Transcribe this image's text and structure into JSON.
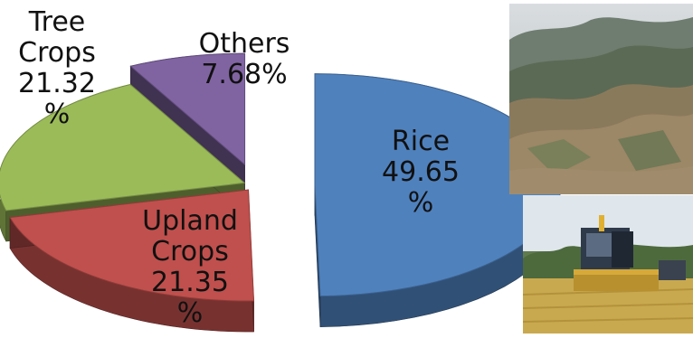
{
  "chart_data": {
    "type": "pie",
    "title": "",
    "style": "3d-exploded",
    "slices": [
      {
        "label": "Rice",
        "value": 49.65,
        "text": "Rice\n49.65\n%",
        "color": "#4f81bd"
      },
      {
        "label": "Upland Crops",
        "value": 21.35,
        "text": "Upland\nCrops\n21.35\n%",
        "color": "#c0504d"
      },
      {
        "label": "Tree Crops",
        "value": 21.32,
        "text": "Tree\nCrops\n21.32\n%",
        "color": "#9bbb59"
      },
      {
        "label": "Others",
        "value": 7.68,
        "text": "Others\n7.68%",
        "color": "#8064a2"
      }
    ]
  },
  "photos": [
    {
      "name": "photo-hillside",
      "subject": "deforested-hillside"
    },
    {
      "name": "photo-harvester",
      "subject": "rice-combine-harvester"
    }
  ]
}
